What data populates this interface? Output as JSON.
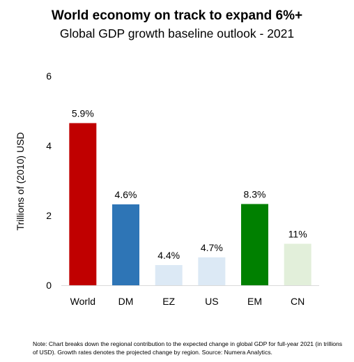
{
  "chart_data": {
    "type": "bar",
    "title": "World economy on track to expand 6%+",
    "subtitle": "Global GDP growth baseline outlook - 2021",
    "ylabel": "Trillions of (2010) USD",
    "xlabel": "",
    "ylim": [
      0,
      6
    ],
    "yticks": [
      "0",
      "2",
      "4",
      "6"
    ],
    "grid": false,
    "categories": [
      "World",
      "DM",
      "EZ",
      "US",
      "EM",
      "CN"
    ],
    "values": [
      4.65,
      2.32,
      0.58,
      0.8,
      2.33,
      1.19
    ],
    "data_labels": [
      "5.9%",
      "4.6%",
      "4.4%",
      "4.7%",
      "8.3%",
      "11%"
    ],
    "colors": [
      "#c00000",
      "#2e75b6",
      "#dce9f5",
      "#dce9f5",
      "#008000",
      "#e2efda"
    ]
  },
  "note": "Note: Chart breaks down the regional contribution to the expected change in global GDP for full-year 2021 (in trillions of USD). Growth rates denotes the projected change by region. Source: Numera Analytics."
}
